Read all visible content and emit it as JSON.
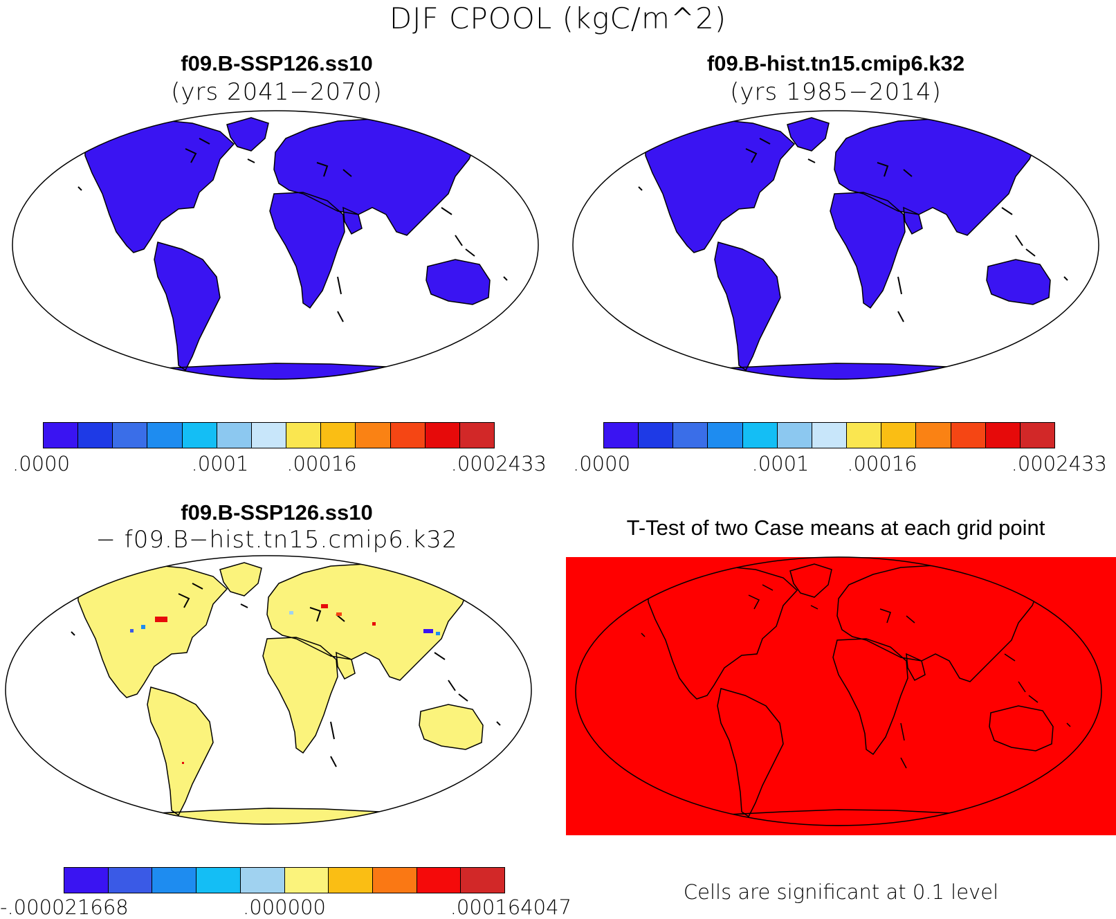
{
  "main_title": "DJF CPOOL (kgC/m^2)",
  "colors": {
    "land_panel": "#3a14f2",
    "diff_land": "#fbf37c",
    "ttest_fill": "#ff0000",
    "coast": "#000000"
  },
  "panels": [
    {
      "id": "panel-ssp126",
      "title": "f09.B-SSP126.ss10",
      "subtitle": "(yrs 2041−2070)",
      "colorbar": {
        "colors": [
          "#3a14f2",
          "#1e3ae6",
          "#3a6ee8",
          "#1e8cf0",
          "#14bef5",
          "#8cc8f0",
          "#c8e6fa",
          "#fae650",
          "#fabe14",
          "#fa8214",
          "#f54614",
          "#e60a0a",
          "#d22828"
        ],
        "labels": [
          ".0000",
          ".0001",
          ".00016",
          ".0002433"
        ]
      }
    },
    {
      "id": "panel-hist",
      "title": "f09.B-hist.tn15.cmip6.k32",
      "subtitle": "(yrs 1985−2014)",
      "colorbar": {
        "colors": [
          "#3a14f2",
          "#1e3ae6",
          "#3a6ee8",
          "#1e8cf0",
          "#14bef5",
          "#8cc8f0",
          "#c8e6fa",
          "#fae650",
          "#fabe14",
          "#fa8214",
          "#f54614",
          "#e60a0a",
          "#d22828"
        ],
        "labels": [
          ".0000",
          ".0001",
          ".00016",
          ".0002433"
        ]
      }
    },
    {
      "id": "panel-diff",
      "title": "f09.B-SSP126.ss10",
      "subtitle": "− f09.B−hist.tn15.cmip6.k32",
      "colorbar": {
        "colors": [
          "#3a14f2",
          "#3a5ae6",
          "#1e8cf0",
          "#14bef5",
          "#a0d2f0",
          "#fbf37c",
          "#fabe14",
          "#fa7814",
          "#f50a0a",
          "#d22828"
        ],
        "labels": [
          "-.000021668",
          ".000000",
          ".000164047"
        ]
      }
    },
    {
      "id": "panel-ttest",
      "title": "T-Test of two Case means at each grid point",
      "note": "Cells are significant at 0.1 level"
    }
  ]
}
